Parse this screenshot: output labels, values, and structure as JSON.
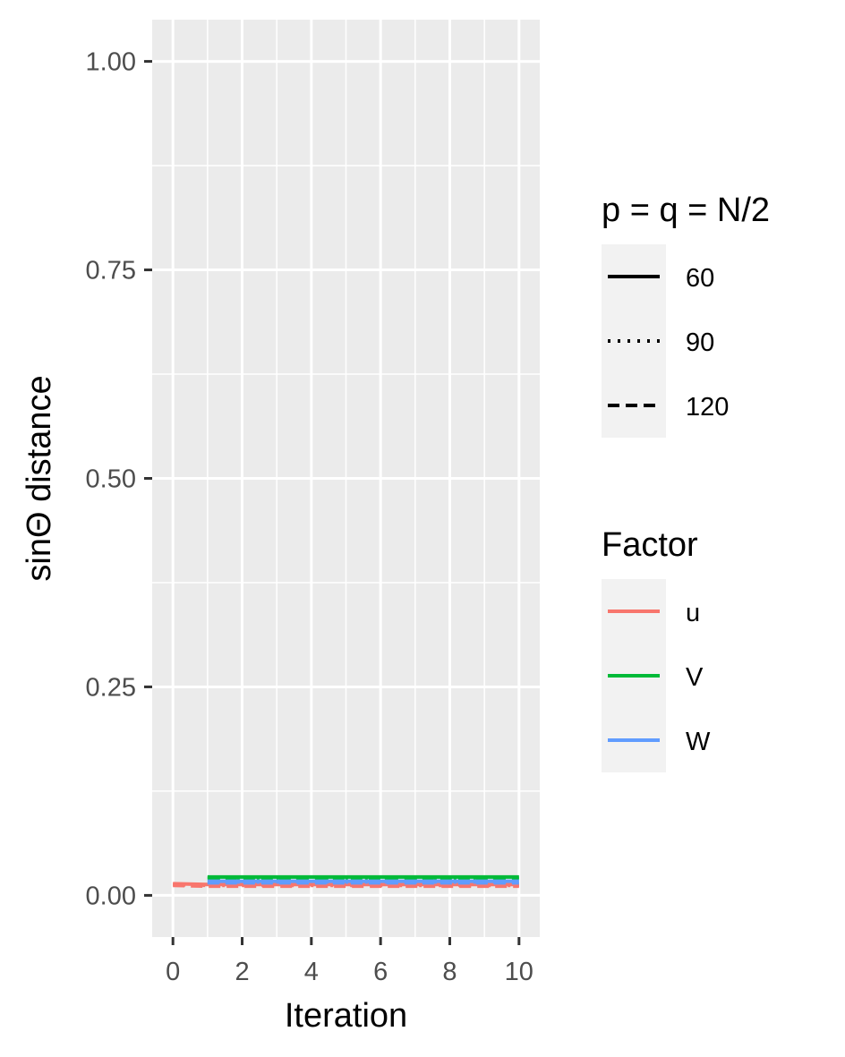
{
  "chart_data": {
    "type": "line",
    "title": "",
    "xlabel": "Iteration",
    "ylabel": "sinΘ distance",
    "xlim": [
      -0.6,
      10.6
    ],
    "ylim": [
      -0.05,
      1.05
    ],
    "x_ticks": [
      0,
      2,
      4,
      6,
      8,
      10
    ],
    "x_tick_labels": [
      "0",
      "2",
      "4",
      "6",
      "8",
      "10"
    ],
    "y_ticks": [
      0.0,
      0.25,
      0.5,
      0.75,
      1.0
    ],
    "y_tick_labels": [
      "0.00",
      "0.25",
      "0.50",
      "0.75",
      "1.00"
    ],
    "grid": true,
    "background": "#ebebeb",
    "legend_position": "right",
    "legends": [
      {
        "title": "p = q = N/2",
        "kind": "linetype",
        "entries": [
          {
            "label": "60",
            "dash": "solid"
          },
          {
            "label": "90",
            "dash": "dotted"
          },
          {
            "label": "120",
            "dash": "dashed"
          }
        ]
      },
      {
        "title": "Factor",
        "kind": "color",
        "entries": [
          {
            "label": "u",
            "color": "#F8766D"
          },
          {
            "label": "V",
            "color": "#00BA38"
          },
          {
            "label": "W",
            "color": "#619CFF"
          }
        ]
      }
    ],
    "series": [
      {
        "factor": "u",
        "p": "60",
        "color": "#F8766D",
        "dash": "solid",
        "x": [
          0,
          1,
          2,
          3,
          4,
          5,
          6,
          7,
          8,
          9,
          10
        ],
        "y": [
          0.014,
          0.013,
          0.013,
          0.013,
          0.013,
          0.013,
          0.013,
          0.013,
          0.013,
          0.013,
          0.013
        ]
      },
      {
        "factor": "u",
        "p": "90",
        "color": "#F8766D",
        "dash": "dotted",
        "x": [
          0,
          1,
          2,
          3,
          4,
          5,
          6,
          7,
          8,
          9,
          10
        ],
        "y": [
          0.013,
          0.012,
          0.012,
          0.012,
          0.012,
          0.012,
          0.012,
          0.012,
          0.012,
          0.012,
          0.012
        ]
      },
      {
        "factor": "u",
        "p": "120",
        "color": "#F8766D",
        "dash": "dashed",
        "x": [
          0,
          1,
          2,
          3,
          4,
          5,
          6,
          7,
          8,
          9,
          10
        ],
        "y": [
          0.012,
          0.011,
          0.011,
          0.011,
          0.011,
          0.011,
          0.011,
          0.011,
          0.011,
          0.011,
          0.011
        ]
      },
      {
        "factor": "V",
        "p": "60",
        "color": "#00BA38",
        "dash": "solid",
        "x": [
          1,
          2,
          3,
          4,
          5,
          6,
          7,
          8,
          9,
          10
        ],
        "y": [
          0.022,
          0.022,
          0.022,
          0.022,
          0.022,
          0.022,
          0.022,
          0.022,
          0.022,
          0.022
        ]
      },
      {
        "factor": "V",
        "p": "90",
        "color": "#00BA38",
        "dash": "dotted",
        "x": [
          1,
          2,
          3,
          4,
          5,
          6,
          7,
          8,
          9,
          10
        ],
        "y": [
          0.021,
          0.021,
          0.021,
          0.021,
          0.021,
          0.021,
          0.021,
          0.021,
          0.021,
          0.021
        ]
      },
      {
        "factor": "V",
        "p": "120",
        "color": "#00BA38",
        "dash": "dashed",
        "x": [
          1,
          2,
          3,
          4,
          5,
          6,
          7,
          8,
          9,
          10
        ],
        "y": [
          0.02,
          0.02,
          0.02,
          0.02,
          0.02,
          0.02,
          0.02,
          0.02,
          0.02,
          0.02
        ]
      },
      {
        "factor": "W",
        "p": "60",
        "color": "#619CFF",
        "dash": "solid",
        "x": [
          1,
          2,
          3,
          4,
          5,
          6,
          7,
          8,
          9,
          10
        ],
        "y": [
          0.017,
          0.017,
          0.017,
          0.017,
          0.017,
          0.017,
          0.017,
          0.017,
          0.017,
          0.017
        ]
      },
      {
        "factor": "W",
        "p": "90",
        "color": "#619CFF",
        "dash": "dotted",
        "x": [
          1,
          2,
          3,
          4,
          5,
          6,
          7,
          8,
          9,
          10
        ],
        "y": [
          0.016,
          0.016,
          0.016,
          0.016,
          0.016,
          0.016,
          0.016,
          0.016,
          0.016,
          0.016
        ]
      },
      {
        "factor": "W",
        "p": "120",
        "color": "#619CFF",
        "dash": "dashed",
        "x": [
          1,
          2,
          3,
          4,
          5,
          6,
          7,
          8,
          9,
          10
        ],
        "y": [
          0.015,
          0.015,
          0.015,
          0.015,
          0.015,
          0.015,
          0.015,
          0.015,
          0.015,
          0.015
        ]
      }
    ]
  }
}
